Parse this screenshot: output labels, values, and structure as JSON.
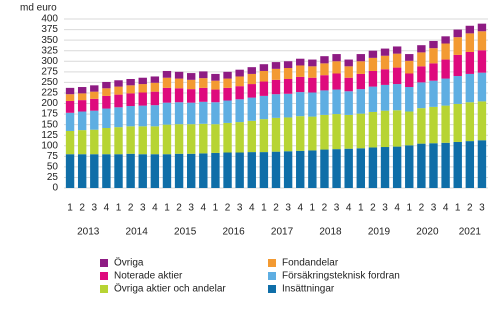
{
  "chart_data": {
    "type": "stacked_bar",
    "y_axis_label": "md euro",
    "categories": [
      "1",
      "2",
      "3",
      "4",
      "1",
      "2",
      "3",
      "4",
      "1",
      "2",
      "3",
      "4",
      "1",
      "2",
      "3",
      "4",
      "1",
      "2",
      "3",
      "4",
      "1",
      "2",
      "3",
      "4",
      "1",
      "2",
      "3",
      "4",
      "1",
      "2",
      "3",
      "4",
      "1",
      "2",
      "3"
    ],
    "year_labels": [
      "2013",
      "2014",
      "2015",
      "2016",
      "2017",
      "2018",
      "2019",
      "2020",
      "2021"
    ],
    "ylim": [
      0,
      400
    ],
    "yticks": [
      0,
      25,
      50,
      75,
      100,
      125,
      150,
      175,
      200,
      225,
      250,
      275,
      300,
      325,
      350,
      375,
      400
    ],
    "grid": true,
    "series": [
      {
        "name": "Insättningar",
        "color": "#0f6ea8",
        "values": [
          80,
          80,
          80,
          80,
          80,
          81,
          80,
          80,
          80,
          81,
          81,
          82,
          83,
          84,
          84,
          85,
          85,
          86,
          87,
          88,
          89,
          91,
          92,
          93,
          94,
          96,
          97,
          98,
          101,
          105,
          106,
          107,
          109,
          111,
          113
        ]
      },
      {
        "name": "Övriga aktier och andelar",
        "color": "#b7d433",
        "values": [
          55,
          57,
          58,
          62,
          64,
          65,
          66,
          66,
          70,
          70,
          70,
          70,
          68,
          70,
          72,
          74,
          78,
          80,
          80,
          82,
          80,
          82,
          83,
          80,
          82,
          84,
          86,
          86,
          80,
          84,
          86,
          88,
          90,
          92,
          92
        ]
      },
      {
        "name": "Försäkringsteknisk fordran",
        "color": "#5eaee2",
        "values": [
          43,
          44,
          45,
          46,
          47,
          48,
          49,
          50,
          52,
          52,
          51,
          52,
          52,
          53,
          54,
          55,
          55,
          56,
          56,
          57,
          57,
          58,
          58,
          56,
          58,
          60,
          61,
          62,
          58,
          61,
          62,
          64,
          66,
          67,
          68
        ]
      },
      {
        "name": "Noterade aktier",
        "color": "#de0a7d",
        "values": [
          28,
          27,
          28,
          30,
          30,
          30,
          31,
          32,
          35,
          33,
          32,
          33,
          30,
          30,
          31,
          32,
          34,
          34,
          35,
          36,
          35,
          36,
          38,
          32,
          36,
          37,
          37,
          39,
          32,
          38,
          41,
          45,
          50,
          52,
          53
        ]
      },
      {
        "name": "Fondandelar",
        "color": "#f39a32",
        "values": [
          16,
          16,
          17,
          18,
          19,
          19,
          20,
          21,
          24,
          23,
          22,
          23,
          21,
          22,
          23,
          24,
          25,
          26,
          26,
          27,
          27,
          28,
          29,
          27,
          30,
          31,
          32,
          33,
          30,
          33,
          36,
          38,
          42,
          44,
          45
        ]
      },
      {
        "name": "Övriga",
        "color": "#8e1b83",
        "values": [
          15,
          15,
          15,
          15,
          15,
          15,
          15,
          15,
          16,
          16,
          16,
          16,
          16,
          16,
          16,
          16,
          16,
          16,
          16,
          16,
          16,
          17,
          17,
          16,
          17,
          17,
          17,
          17,
          16,
          17,
          17,
          17,
          18,
          18,
          18
        ]
      }
    ]
  }
}
